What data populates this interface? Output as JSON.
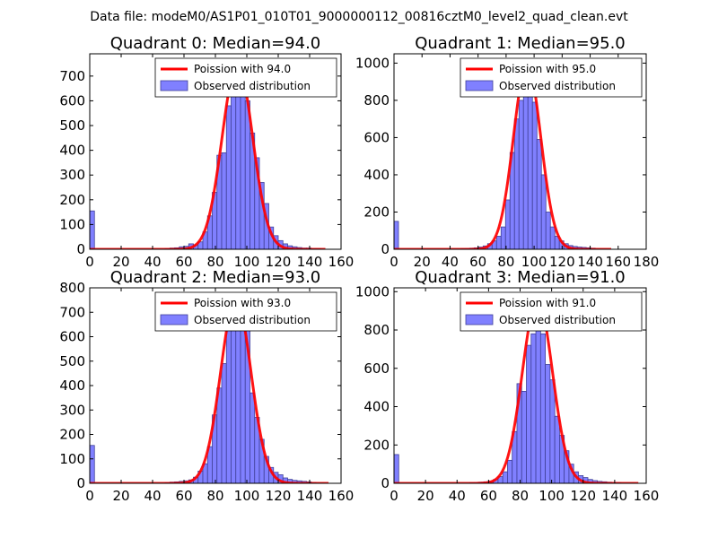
{
  "suptitle": "Data file: modeM0/AS1P01_010T01_9000000112_00816cztM0_level2_quad_clean.evt",
  "colors": {
    "bar_fill": "#8080ff",
    "bar_edge": "#404098",
    "curve": "#ff0000",
    "axes": "#000000"
  },
  "legend": {
    "curve_prefix": "Poission with",
    "observed_label": "Observed distribution",
    "placement": "top-right"
  },
  "chart_data": [
    {
      "type": "bar",
      "title": "Quadrant 0: Median=94.0",
      "median": 94.0,
      "curve_label": "Poission with 94.0",
      "xlim": [
        0,
        160
      ],
      "ylim": [
        0,
        790
      ],
      "xticks": [
        0,
        20,
        40,
        60,
        80,
        100,
        120,
        140,
        160
      ],
      "yticks": [
        0,
        100,
        200,
        300,
        400,
        500,
        600,
        700
      ],
      "bin_width": 3.0,
      "bins": [
        {
          "x": 0,
          "y": 155
        },
        {
          "x": 48,
          "y": 3
        },
        {
          "x": 51,
          "y": 5
        },
        {
          "x": 54,
          "y": 6
        },
        {
          "x": 57,
          "y": 10
        },
        {
          "x": 60,
          "y": 12
        },
        {
          "x": 63,
          "y": 22
        },
        {
          "x": 66,
          "y": 18
        },
        {
          "x": 69,
          "y": 30
        },
        {
          "x": 72,
          "y": 70
        },
        {
          "x": 75,
          "y": 135
        },
        {
          "x": 78,
          "y": 230
        },
        {
          "x": 81,
          "y": 380
        },
        {
          "x": 84,
          "y": 390
        },
        {
          "x": 87,
          "y": 580
        },
        {
          "x": 90,
          "y": 665
        },
        {
          "x": 93,
          "y": 760
        },
        {
          "x": 96,
          "y": 730
        },
        {
          "x": 99,
          "y": 600
        },
        {
          "x": 102,
          "y": 470
        },
        {
          "x": 105,
          "y": 370
        },
        {
          "x": 108,
          "y": 270
        },
        {
          "x": 111,
          "y": 185
        },
        {
          "x": 114,
          "y": 90
        },
        {
          "x": 117,
          "y": 55
        },
        {
          "x": 120,
          "y": 35
        },
        {
          "x": 123,
          "y": 22
        },
        {
          "x": 126,
          "y": 14
        },
        {
          "x": 129,
          "y": 10
        },
        {
          "x": 132,
          "y": 7
        },
        {
          "x": 135,
          "y": 5
        },
        {
          "x": 138,
          "y": 5
        },
        {
          "x": 141,
          "y": 3
        },
        {
          "x": 144,
          "y": 3
        }
      ],
      "curve": {
        "center": 94.0,
        "peak": 750,
        "x_range": [
          0,
          150
        ]
      }
    },
    {
      "type": "bar",
      "title": "Quadrant 1: Median=95.0",
      "median": 95.0,
      "curve_label": "Poission with 95.0",
      "xlim": [
        0,
        180
      ],
      "ylim": [
        0,
        1050
      ],
      "xticks": [
        0,
        20,
        40,
        60,
        80,
        100,
        120,
        140,
        160,
        180
      ],
      "yticks": [
        0,
        200,
        400,
        600,
        800,
        1000
      ],
      "bin_width": 3.2,
      "bins": [
        {
          "x": 0,
          "y": 150
        },
        {
          "x": 48,
          "y": 4
        },
        {
          "x": 51,
          "y": 5
        },
        {
          "x": 54,
          "y": 6
        },
        {
          "x": 57.2,
          "y": 8
        },
        {
          "x": 60.4,
          "y": 12
        },
        {
          "x": 63.6,
          "y": 18
        },
        {
          "x": 66.8,
          "y": 30
        },
        {
          "x": 70,
          "y": 45
        },
        {
          "x": 73.2,
          "y": 70
        },
        {
          "x": 76.4,
          "y": 120
        },
        {
          "x": 79.6,
          "y": 265
        },
        {
          "x": 82.8,
          "y": 520
        },
        {
          "x": 86,
          "y": 700
        },
        {
          "x": 89.2,
          "y": 800
        },
        {
          "x": 92.4,
          "y": 1000
        },
        {
          "x": 95.6,
          "y": 1000
        },
        {
          "x": 98.8,
          "y": 790
        },
        {
          "x": 102,
          "y": 590
        },
        {
          "x": 105.2,
          "y": 400
        },
        {
          "x": 108.4,
          "y": 200
        },
        {
          "x": 111.6,
          "y": 120
        },
        {
          "x": 114.8,
          "y": 70
        },
        {
          "x": 118,
          "y": 45
        },
        {
          "x": 121.2,
          "y": 30
        },
        {
          "x": 124.4,
          "y": 20
        },
        {
          "x": 127.6,
          "y": 15
        },
        {
          "x": 130.8,
          "y": 12
        },
        {
          "x": 134,
          "y": 10
        },
        {
          "x": 137.2,
          "y": 8
        },
        {
          "x": 140.4,
          "y": 6
        }
      ],
      "curve": {
        "center": 95.0,
        "peak": 995,
        "x_range": [
          0,
          155
        ]
      }
    },
    {
      "type": "bar",
      "title": "Quadrant 2: Median=93.0",
      "median": 93.0,
      "curve_label": "Poission with 93.0",
      "xlim": [
        0,
        160
      ],
      "ylim": [
        0,
        800
      ],
      "xticks": [
        0,
        20,
        40,
        60,
        80,
        100,
        120,
        140,
        160
      ],
      "yticks": [
        0,
        100,
        200,
        300,
        400,
        500,
        600,
        700,
        800
      ],
      "bin_width": 3.0,
      "bins": [
        {
          "x": 0,
          "y": 155
        },
        {
          "x": 48,
          "y": 3
        },
        {
          "x": 51,
          "y": 5
        },
        {
          "x": 54,
          "y": 6
        },
        {
          "x": 57,
          "y": 8
        },
        {
          "x": 60,
          "y": 10
        },
        {
          "x": 63,
          "y": 14
        },
        {
          "x": 66,
          "y": 25
        },
        {
          "x": 69,
          "y": 50
        },
        {
          "x": 72,
          "y": 80
        },
        {
          "x": 75,
          "y": 150
        },
        {
          "x": 78,
          "y": 280
        },
        {
          "x": 81,
          "y": 390
        },
        {
          "x": 84,
          "y": 490
        },
        {
          "x": 87,
          "y": 660
        },
        {
          "x": 90,
          "y": 690
        },
        {
          "x": 93,
          "y": 760
        },
        {
          "x": 96,
          "y": 740
        },
        {
          "x": 99,
          "y": 770
        },
        {
          "x": 102,
          "y": 370
        },
        {
          "x": 105,
          "y": 270
        },
        {
          "x": 108,
          "y": 180
        },
        {
          "x": 111,
          "y": 110
        },
        {
          "x": 114,
          "y": 65
        },
        {
          "x": 117,
          "y": 45
        },
        {
          "x": 120,
          "y": 35
        },
        {
          "x": 123,
          "y": 22
        },
        {
          "x": 126,
          "y": 16
        },
        {
          "x": 129,
          "y": 12
        },
        {
          "x": 132,
          "y": 10
        },
        {
          "x": 135,
          "y": 8
        },
        {
          "x": 138,
          "y": 6
        },
        {
          "x": 141,
          "y": 4
        }
      ],
      "curve": {
        "center": 93.0,
        "peak": 755,
        "x_range": [
          0,
          152
        ]
      }
    },
    {
      "type": "bar",
      "title": "Quadrant 3: Median=91.0",
      "median": 91.0,
      "curve_label": "Poission with 91.0",
      "xlim": [
        0,
        160
      ],
      "ylim": [
        0,
        1020
      ],
      "xticks": [
        0,
        20,
        40,
        60,
        80,
        100,
        120,
        140,
        160
      ],
      "yticks": [
        0,
        200,
        400,
        600,
        800,
        1000
      ],
      "bin_width": 3.0,
      "bins": [
        {
          "x": 0,
          "y": 150
        },
        {
          "x": 48,
          "y": 4
        },
        {
          "x": 51,
          "y": 5
        },
        {
          "x": 54,
          "y": 6
        },
        {
          "x": 57,
          "y": 8
        },
        {
          "x": 60,
          "y": 12
        },
        {
          "x": 63,
          "y": 20
        },
        {
          "x": 66,
          "y": 35
        },
        {
          "x": 69,
          "y": 60
        },
        {
          "x": 72,
          "y": 120
        },
        {
          "x": 75,
          "y": 270
        },
        {
          "x": 78,
          "y": 520
        },
        {
          "x": 81,
          "y": 480
        },
        {
          "x": 84,
          "y": 720
        },
        {
          "x": 87,
          "y": 780
        },
        {
          "x": 90,
          "y": 860
        },
        {
          "x": 93,
          "y": 780
        },
        {
          "x": 96,
          "y": 620
        },
        {
          "x": 99,
          "y": 540
        },
        {
          "x": 102,
          "y": 350
        },
        {
          "x": 105,
          "y": 250
        },
        {
          "x": 108,
          "y": 170
        },
        {
          "x": 111,
          "y": 100
        },
        {
          "x": 114,
          "y": 60
        },
        {
          "x": 117,
          "y": 40
        },
        {
          "x": 120,
          "y": 30
        },
        {
          "x": 123,
          "y": 20
        },
        {
          "x": 126,
          "y": 14
        },
        {
          "x": 129,
          "y": 10
        },
        {
          "x": 132,
          "y": 8
        },
        {
          "x": 135,
          "y": 6
        },
        {
          "x": 138,
          "y": 5
        },
        {
          "x": 141,
          "y": 4
        }
      ],
      "curve": {
        "center": 91.0,
        "peak": 960,
        "x_range": [
          0,
          155
        ]
      }
    }
  ]
}
